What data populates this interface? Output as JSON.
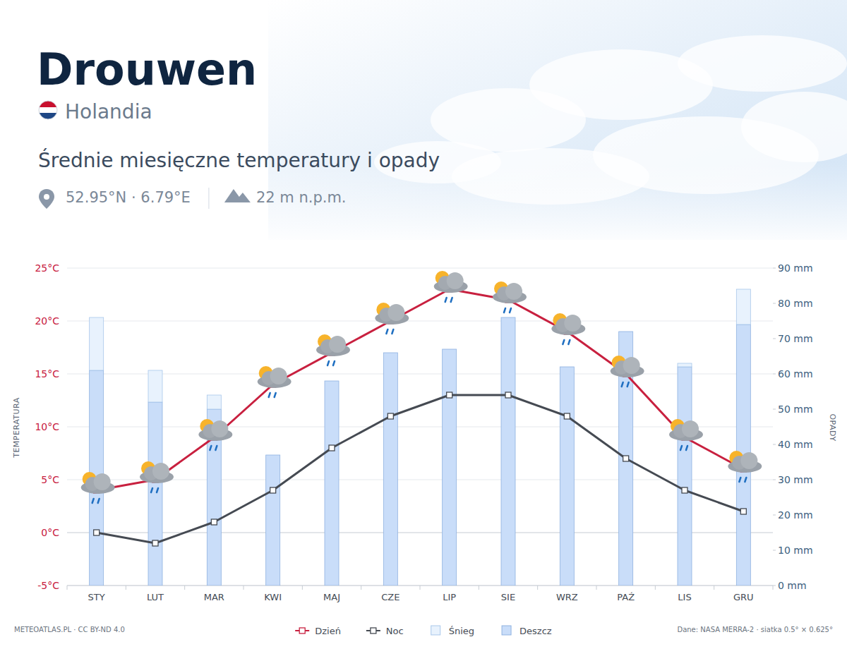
{
  "chart_data": {
    "type": "bar",
    "title": "Drouwen",
    "country": "Holandia",
    "subtitle": "Średnie miesięczne temperatury i opady",
    "coordinates": "52.95°N · 6.79°E",
    "elevation": "22 m n.p.m.",
    "credit": "METEOATLAS.PL · CC BY-ND 4.0",
    "source": "Dane: NASA MERRA-2 · siatka 0.5° × 0.625°",
    "ylabel": "TEMPERATURA",
    "y2label": "OPADY",
    "categories": [
      "STY",
      "LUT",
      "MAR",
      "KWI",
      "MAJ",
      "CZE",
      "LIP",
      "SIE",
      "WRZ",
      "PAŹ",
      "LIS",
      "GRU"
    ],
    "ylim": [
      -5,
      25
    ],
    "yticks": [
      {
        "value": -5,
        "label": "-5°C"
      },
      {
        "value": 0,
        "label": "0°C"
      },
      {
        "value": 5,
        "label": "5°C"
      },
      {
        "value": 10,
        "label": "10°C"
      },
      {
        "value": 15,
        "label": "15°C"
      },
      {
        "value": 20,
        "label": "20°C"
      },
      {
        "value": 25,
        "label": "25°C"
      }
    ],
    "y2lim": [
      0,
      90
    ],
    "y2ticks": [
      {
        "value": 0,
        "label": "0 mm"
      },
      {
        "value": 10,
        "label": "10 mm"
      },
      {
        "value": 20,
        "label": "20 mm"
      },
      {
        "value": 30,
        "label": "30 mm"
      },
      {
        "value": 40,
        "label": "40 mm"
      },
      {
        "value": 50,
        "label": "50 mm"
      },
      {
        "value": 60,
        "label": "60 mm"
      },
      {
        "value": 70,
        "label": "70 mm"
      },
      {
        "value": 80,
        "label": "80 mm"
      },
      {
        "value": 90,
        "label": "90 mm"
      }
    ],
    "grid": true,
    "stacked": true,
    "legend": "bottom",
    "series": [
      {
        "name": "Deszcz",
        "type": "bar",
        "axis": "y2",
        "color": "#c9ddf9",
        "values": [
          61,
          52,
          50,
          37,
          58,
          66,
          67,
          76,
          62,
          72,
          62,
          74
        ]
      },
      {
        "name": "Śnieg",
        "type": "bar",
        "axis": "y2",
        "color": "#e8f2fd",
        "values": [
          15,
          9,
          4,
          0,
          0,
          0,
          0,
          0,
          0,
          0,
          1,
          10
        ]
      },
      {
        "name": "Dzień",
        "type": "line",
        "color": "#c8203f",
        "marker": "square",
        "values": [
          4,
          5,
          9,
          14,
          17,
          20,
          23,
          22,
          19,
          15,
          9,
          6
        ]
      },
      {
        "name": "Noc",
        "type": "line",
        "color": "#454a52",
        "marker": "square",
        "values": [
          0,
          -1,
          1,
          4,
          8,
          11,
          13,
          13,
          11,
          7,
          4,
          2
        ]
      }
    ]
  }
}
